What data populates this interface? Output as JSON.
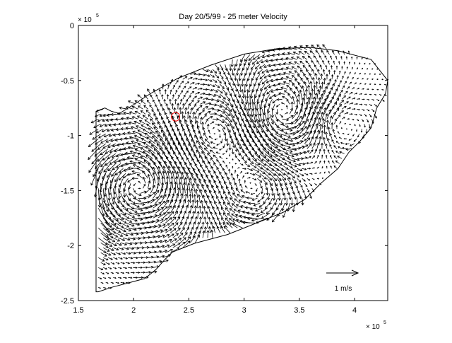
{
  "chart_data": {
    "type": "quiver",
    "title": "Day 20/5/99 - 25 meter Velocity",
    "xlabel": "",
    "ylabel": "",
    "x_multiplier_label": "× 10",
    "x_multiplier_exp": "5",
    "y_multiplier_label": "× 10",
    "y_multiplier_exp": "5",
    "xlim": [
      1.5,
      4.3
    ],
    "ylim": [
      -2.5,
      0
    ],
    "xticks": [
      1.5,
      2,
      2.5,
      3,
      3.5,
      4
    ],
    "xtick_labels": [
      "1.5",
      "2",
      "2.5",
      "3",
      "3.5",
      "4"
    ],
    "yticks": [
      0,
      -0.5,
      -1,
      -1.5,
      -2,
      -2.5
    ],
    "ytick_labels": [
      "0",
      "-0.5",
      "-1",
      "-1.5",
      "-2",
      "-2.5"
    ],
    "grid": false,
    "scale_label": "1 m/s",
    "scale_speed": 1,
    "domain_outline": [
      [
        1.66,
        -2.42
      ],
      [
        1.66,
        -0.78
      ],
      [
        1.74,
        -0.75
      ],
      [
        1.8,
        -0.78
      ],
      [
        1.87,
        -0.8
      ],
      [
        2.0,
        -0.72
      ],
      [
        2.15,
        -0.62
      ],
      [
        2.4,
        -0.48
      ],
      [
        2.7,
        -0.36
      ],
      [
        3.0,
        -0.26
      ],
      [
        3.3,
        -0.21
      ],
      [
        3.6,
        -0.2
      ],
      [
        3.85,
        -0.23
      ],
      [
        4.15,
        -0.31
      ],
      [
        4.3,
        -0.5
      ],
      [
        4.28,
        -0.62
      ],
      [
        4.2,
        -0.75
      ],
      [
        4.15,
        -0.93
      ],
      [
        4.05,
        -1.05
      ],
      [
        3.95,
        -1.15
      ],
      [
        3.85,
        -1.3
      ],
      [
        3.7,
        -1.43
      ],
      [
        3.55,
        -1.58
      ],
      [
        3.35,
        -1.7
      ],
      [
        3.1,
        -1.8
      ],
      [
        2.85,
        -1.9
      ],
      [
        2.55,
        -1.98
      ],
      [
        2.35,
        -2.06
      ],
      [
        2.28,
        -2.13
      ],
      [
        2.2,
        -2.22
      ],
      [
        2.1,
        -2.3
      ],
      [
        1.95,
        -2.34
      ],
      [
        1.8,
        -2.38
      ],
      [
        1.68,
        -2.42
      ]
    ],
    "marker": {
      "x": 2.38,
      "y": -0.83,
      "color": "#ff0000"
    },
    "colors": {
      "outline": "#000000",
      "arrows": "#000000",
      "marker": "#ff0000"
    }
  }
}
